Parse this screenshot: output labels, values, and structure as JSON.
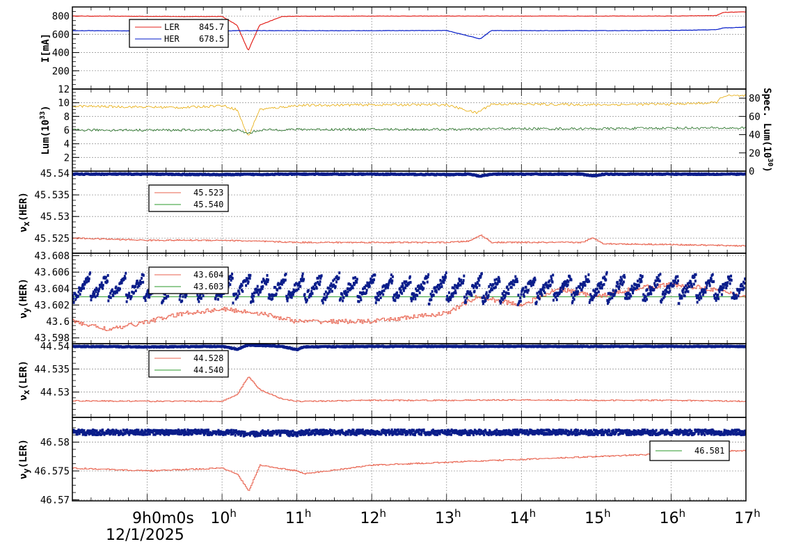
{
  "colors": {
    "ler": "#e3211b",
    "her": "#0018c8",
    "lum": "#e6a800",
    "spec": "#1a6a1a",
    "tune": "#0a1d8a",
    "set": "#e8604c",
    "set2": "#2a9a2a"
  },
  "x_axis": {
    "tick_labels": [
      "9",
      "10",
      "11",
      "12",
      "13",
      "14",
      "15",
      "16",
      "17"
    ],
    "tick_values": [
      9,
      10,
      11,
      12,
      13,
      14,
      15,
      16,
      17
    ],
    "suffix": "h",
    "first_label": "9h0m0s",
    "date": "12/1/2025"
  },
  "chart_data": [
    {
      "type": "line",
      "ylabel": "I[mA]",
      "ylim": [
        0,
        900
      ],
      "ytick_labels": [
        "800",
        "600",
        "400",
        "200"
      ],
      "ytick_values": [
        800,
        600,
        400,
        200
      ],
      "x": [
        8.0,
        8.8,
        9.5,
        10.0,
        10.2,
        10.35,
        10.5,
        10.8,
        11.0,
        12.0,
        13.0,
        13.45,
        13.6,
        14.0,
        15.0,
        16.0,
        16.6,
        16.7,
        17.0
      ],
      "series": [
        {
          "name": "LER",
          "legend_value": "845.7",
          "values": [
            800,
            798,
            795,
            796,
            700,
            420,
            700,
            795,
            798,
            800,
            800,
            800,
            800,
            800,
            800,
            800,
            805,
            840,
            846
          ]
        },
        {
          "name": "HER",
          "legend_value": "678.5",
          "values": [
            640,
            638,
            636,
            637,
            640,
            640,
            640,
            640,
            640,
            640,
            642,
            550,
            642,
            640,
            640,
            642,
            650,
            670,
            678
          ]
        }
      ]
    },
    {
      "type": "line",
      "ylabel": "Lum(10^33)",
      "ylabel_parts": [
        "Lum(10",
        "33",
        ")"
      ],
      "ylim": [
        0,
        12
      ],
      "ytick_labels": [
        "12",
        "10",
        "8",
        "6",
        "4",
        "2"
      ],
      "ytick_values": [
        12,
        10,
        8,
        6,
        4,
        2
      ],
      "y2label": "Spec. Lum(10^30)",
      "y2label_parts": [
        "Spec. Lum(10",
        "30",
        ")"
      ],
      "y2lim": [
        0,
        90
      ],
      "y2tick_labels": [
        "80",
        "60",
        "40",
        "20",
        "0"
      ],
      "y2tick_values": [
        80,
        60,
        40,
        20,
        0
      ],
      "x": [
        8.0,
        8.8,
        9.5,
        10.0,
        10.2,
        10.35,
        10.5,
        11.0,
        12.0,
        13.0,
        13.4,
        13.6,
        14.0,
        15.0,
        16.0,
        16.6,
        16.7,
        17.0
      ],
      "series": [
        {
          "values": [
            9.5,
            9.4,
            9.3,
            9.6,
            9.0,
            5.0,
            9.0,
            9.6,
            9.7,
            9.7,
            8.5,
            9.8,
            9.8,
            9.7,
            9.8,
            10.0,
            11.0,
            11.0
          ]
        },
        {
          "values": [
            6.0,
            6.0,
            6.0,
            6.0,
            6.0,
            5.5,
            6.0,
            6.1,
            6.1,
            6.1,
            6.1,
            6.2,
            6.2,
            6.2,
            6.3,
            6.3,
            6.3,
            6.3
          ]
        }
      ]
    },
    {
      "type": "scatter",
      "ylabel": "νx(HER)",
      "ylabel_parts": [
        "ν",
        "x",
        "(HER)"
      ],
      "ylim": [
        45.5215,
        45.5405
      ],
      "ytick_labels": [
        "45.54",
        "45.535",
        "45.53",
        "45.525"
      ],
      "ytick_values": [
        45.54,
        45.535,
        45.53,
        45.525
      ],
      "x": [
        8.0,
        9.0,
        10.0,
        11.0,
        12.0,
        13.0,
        13.3,
        13.45,
        13.6,
        14.0,
        14.8,
        14.95,
        15.1,
        16.0,
        17.0
      ],
      "series": [
        {
          "name": "45.523",
          "values": [
            45.525,
            45.5245,
            45.5245,
            45.524,
            45.524,
            45.524,
            45.5243,
            45.5257,
            45.524,
            45.524,
            45.524,
            45.525,
            45.5237,
            45.5235,
            45.5232
          ]
        },
        {
          "name": "45.540",
          "values": [
            45.5398,
            45.5398,
            45.5397,
            45.5398,
            45.5398,
            45.5397,
            45.5398,
            45.5393,
            45.5398,
            45.5398,
            45.5398,
            45.5394,
            45.5398,
            45.5398,
            45.5398
          ]
        }
      ]
    },
    {
      "type": "scatter",
      "ylabel": "νy(HER)",
      "ylabel_parts": [
        "ν",
        "y",
        "(HER)"
      ],
      "ylim": [
        43.5973,
        43.6083
      ],
      "ytick_labels": [
        "43.608",
        "43.606",
        "43.604",
        "43.602",
        "43.6",
        "43.598"
      ],
      "ytick_values": [
        43.608,
        43.606,
        43.604,
        43.602,
        43.6,
        43.598
      ],
      "series": [
        {
          "name": "43.604",
          "values": [
            43.6,
            43.599,
            43.6,
            43.601,
            43.6015,
            43.601,
            43.6,
            43.6,
            43.601,
            43.603,
            43.602,
            43.604,
            43.603,
            43.604,
            43.6045,
            43.604,
            43.603
          ]
        },
        {
          "name": "43.603",
          "values": [
            43.603,
            43.603,
            43.603,
            43.603,
            43.603,
            43.603,
            43.603,
            43.603,
            43.603,
            43.603,
            43.603,
            43.603,
            43.603,
            43.603,
            43.603,
            43.603,
            43.603
          ]
        }
      ],
      "x": [
        8.0,
        8.5,
        9.0,
        9.5,
        10.0,
        10.5,
        11.0,
        12.0,
        13.0,
        13.4,
        14.0,
        14.5,
        15.0,
        15.5,
        16.0,
        16.5,
        17.0
      ]
    },
    {
      "type": "scatter",
      "ylabel": "νx(LER)",
      "ylabel_parts": [
        "ν",
        "x",
        "(LER)"
      ],
      "ylim": [
        44.5245,
        44.5405
      ],
      "ytick_labels": [
        "44.54",
        "44.535",
        "44.53"
      ],
      "ytick_values": [
        44.54,
        44.535,
        44.53
      ],
      "x": [
        8.0,
        9.0,
        10.0,
        10.2,
        10.35,
        10.5,
        10.8,
        11.0,
        11.1,
        12.0,
        13.0,
        14.0,
        15.0,
        16.0,
        17.0
      ],
      "series": [
        {
          "name": "44.528",
          "values": [
            44.5281,
            44.528,
            44.528,
            44.5295,
            44.5334,
            44.5305,
            44.5285,
            44.528,
            44.528,
            44.5282,
            44.5282,
            44.5283,
            44.5282,
            44.5282,
            44.528
          ]
        },
        {
          "name": "44.540",
          "values": [
            44.5399,
            44.5398,
            44.5399,
            44.5393,
            44.5402,
            44.5401,
            44.5399,
            44.5392,
            44.5398,
            44.5399,
            44.5399,
            44.5399,
            44.5399,
            44.5399,
            44.5399
          ]
        }
      ]
    },
    {
      "type": "scatter",
      "ylabel": "νy(LER)",
      "ylabel_parts": [
        "ν",
        "y",
        "(LER)"
      ],
      "ylim": [
        46.5698,
        46.5843
      ],
      "ytick_labels": [
        "46.58",
        "46.575",
        "46.57"
      ],
      "ytick_values": [
        46.58,
        46.575,
        46.57
      ],
      "x": [
        8.0,
        9.0,
        10.0,
        10.2,
        10.35,
        10.5,
        11.0,
        11.1,
        12.0,
        13.0,
        14.0,
        15.0,
        16.0,
        16.5,
        17.0
      ],
      "series": [
        {
          "name": "46.581",
          "values": [
            46.5755,
            46.575,
            46.5755,
            46.5745,
            46.5715,
            46.576,
            46.575,
            46.5745,
            46.576,
            46.5765,
            46.577,
            46.5775,
            46.578,
            46.5785,
            46.5785
          ]
        },
        {
          "values": [
            46.5817,
            46.5817,
            46.5817,
            46.5816,
            46.5812,
            46.5816,
            46.5815,
            46.5817,
            46.5817,
            46.5817,
            46.5817,
            46.5817,
            46.5817,
            46.5817,
            46.5817
          ]
        }
      ]
    }
  ]
}
